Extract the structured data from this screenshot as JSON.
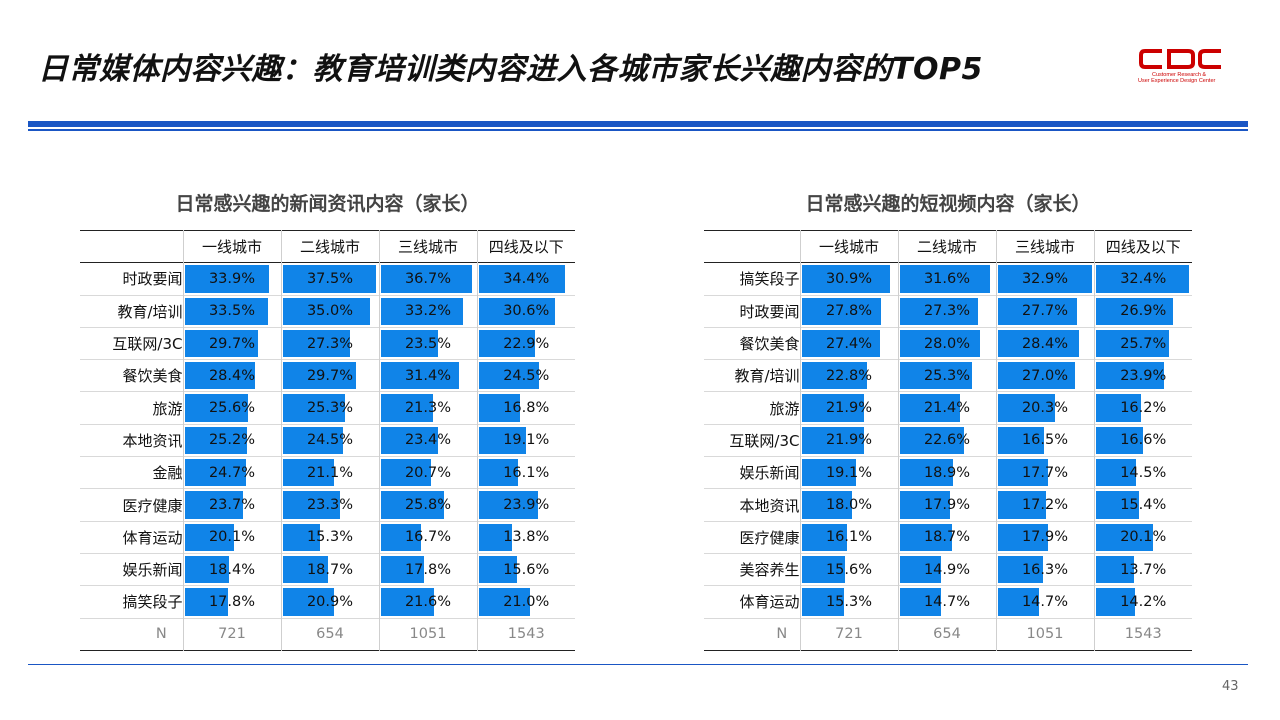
{
  "page": {
    "title": "日常媒体内容兴趣：教育培训类内容进入各城市家长兴趣内容的TOP5",
    "page_number": "43",
    "logo": {
      "mark": "CDC",
      "line1": "Customer Research &",
      "line2": "User Experience Design Center"
    },
    "colors": {
      "bar": "#1084e8",
      "rule": "#1a56c4",
      "logo": "#cc0000"
    }
  },
  "chart_data": [
    {
      "type": "table",
      "title": "日常感兴趣的新闻资讯内容（家长）",
      "columns": [
        "一线城市",
        "二线城市",
        "三线城市",
        "四线及以下"
      ],
      "rows": [
        {
          "label": "时政要闻",
          "values": [
            "33.9%",
            "37.5%",
            "36.7%",
            "34.4%"
          ]
        },
        {
          "label": "教育/培训",
          "values": [
            "33.5%",
            "35.0%",
            "33.2%",
            "30.6%"
          ]
        },
        {
          "label": "互联网/3C",
          "values": [
            "29.7%",
            "27.3%",
            "23.5%",
            "22.9%"
          ]
        },
        {
          "label": "餐饮美食",
          "values": [
            "28.4%",
            "29.7%",
            "31.4%",
            "24.5%"
          ]
        },
        {
          "label": "旅游",
          "values": [
            "25.6%",
            "25.3%",
            "21.3%",
            "16.8%"
          ]
        },
        {
          "label": "本地资讯",
          "values": [
            "25.2%",
            "24.5%",
            "23.4%",
            "19.1%"
          ]
        },
        {
          "label": "金融",
          "values": [
            "24.7%",
            "21.1%",
            "20.7%",
            "16.1%"
          ]
        },
        {
          "label": "医疗健康",
          "values": [
            "23.7%",
            "23.3%",
            "25.8%",
            "23.9%"
          ]
        },
        {
          "label": "体育运动",
          "values": [
            "20.1%",
            "15.3%",
            "16.7%",
            "13.8%"
          ]
        },
        {
          "label": "娱乐新闻",
          "values": [
            "18.4%",
            "18.7%",
            "17.8%",
            "15.6%"
          ]
        },
        {
          "label": "搞笑段子",
          "values": [
            "17.8%",
            "20.9%",
            "21.6%",
            "21.0%"
          ]
        }
      ],
      "n_label": "N",
      "n_values": [
        "721",
        "654",
        "1051",
        "1543"
      ],
      "bar_max": 38
    },
    {
      "type": "table",
      "title": "日常感兴趣的短视频内容（家长）",
      "columns": [
        "一线城市",
        "二线城市",
        "三线城市",
        "四线及以下"
      ],
      "rows": [
        {
          "label": "搞笑段子",
          "values": [
            "30.9%",
            "31.6%",
            "32.9%",
            "32.4%"
          ]
        },
        {
          "label": "时政要闻",
          "values": [
            "27.8%",
            "27.3%",
            "27.7%",
            "26.9%"
          ]
        },
        {
          "label": "餐饮美食",
          "values": [
            "27.4%",
            "28.0%",
            "28.4%",
            "25.7%"
          ]
        },
        {
          "label": "教育/培训",
          "values": [
            "22.8%",
            "25.3%",
            "27.0%",
            "23.9%"
          ]
        },
        {
          "label": "旅游",
          "values": [
            "21.9%",
            "21.4%",
            "20.3%",
            "16.2%"
          ]
        },
        {
          "label": "互联网/3C",
          "values": [
            "21.9%",
            "22.6%",
            "16.5%",
            "16.6%"
          ]
        },
        {
          "label": "娱乐新闻",
          "values": [
            "19.1%",
            "18.9%",
            "17.7%",
            "14.5%"
          ]
        },
        {
          "label": "本地资讯",
          "values": [
            "18.0%",
            "17.9%",
            "17.2%",
            "15.4%"
          ]
        },
        {
          "label": "医疗健康",
          "values": [
            "16.1%",
            "18.7%",
            "17.9%",
            "20.1%"
          ]
        },
        {
          "label": "美容养生",
          "values": [
            "15.6%",
            "14.9%",
            "16.3%",
            "13.7%"
          ]
        },
        {
          "label": "体育运动",
          "values": [
            "15.3%",
            "14.7%",
            "14.7%",
            "14.2%"
          ]
        }
      ],
      "n_label": "N",
      "n_values": [
        "721",
        "654",
        "1051",
        "1543"
      ],
      "bar_max": 33
    }
  ]
}
